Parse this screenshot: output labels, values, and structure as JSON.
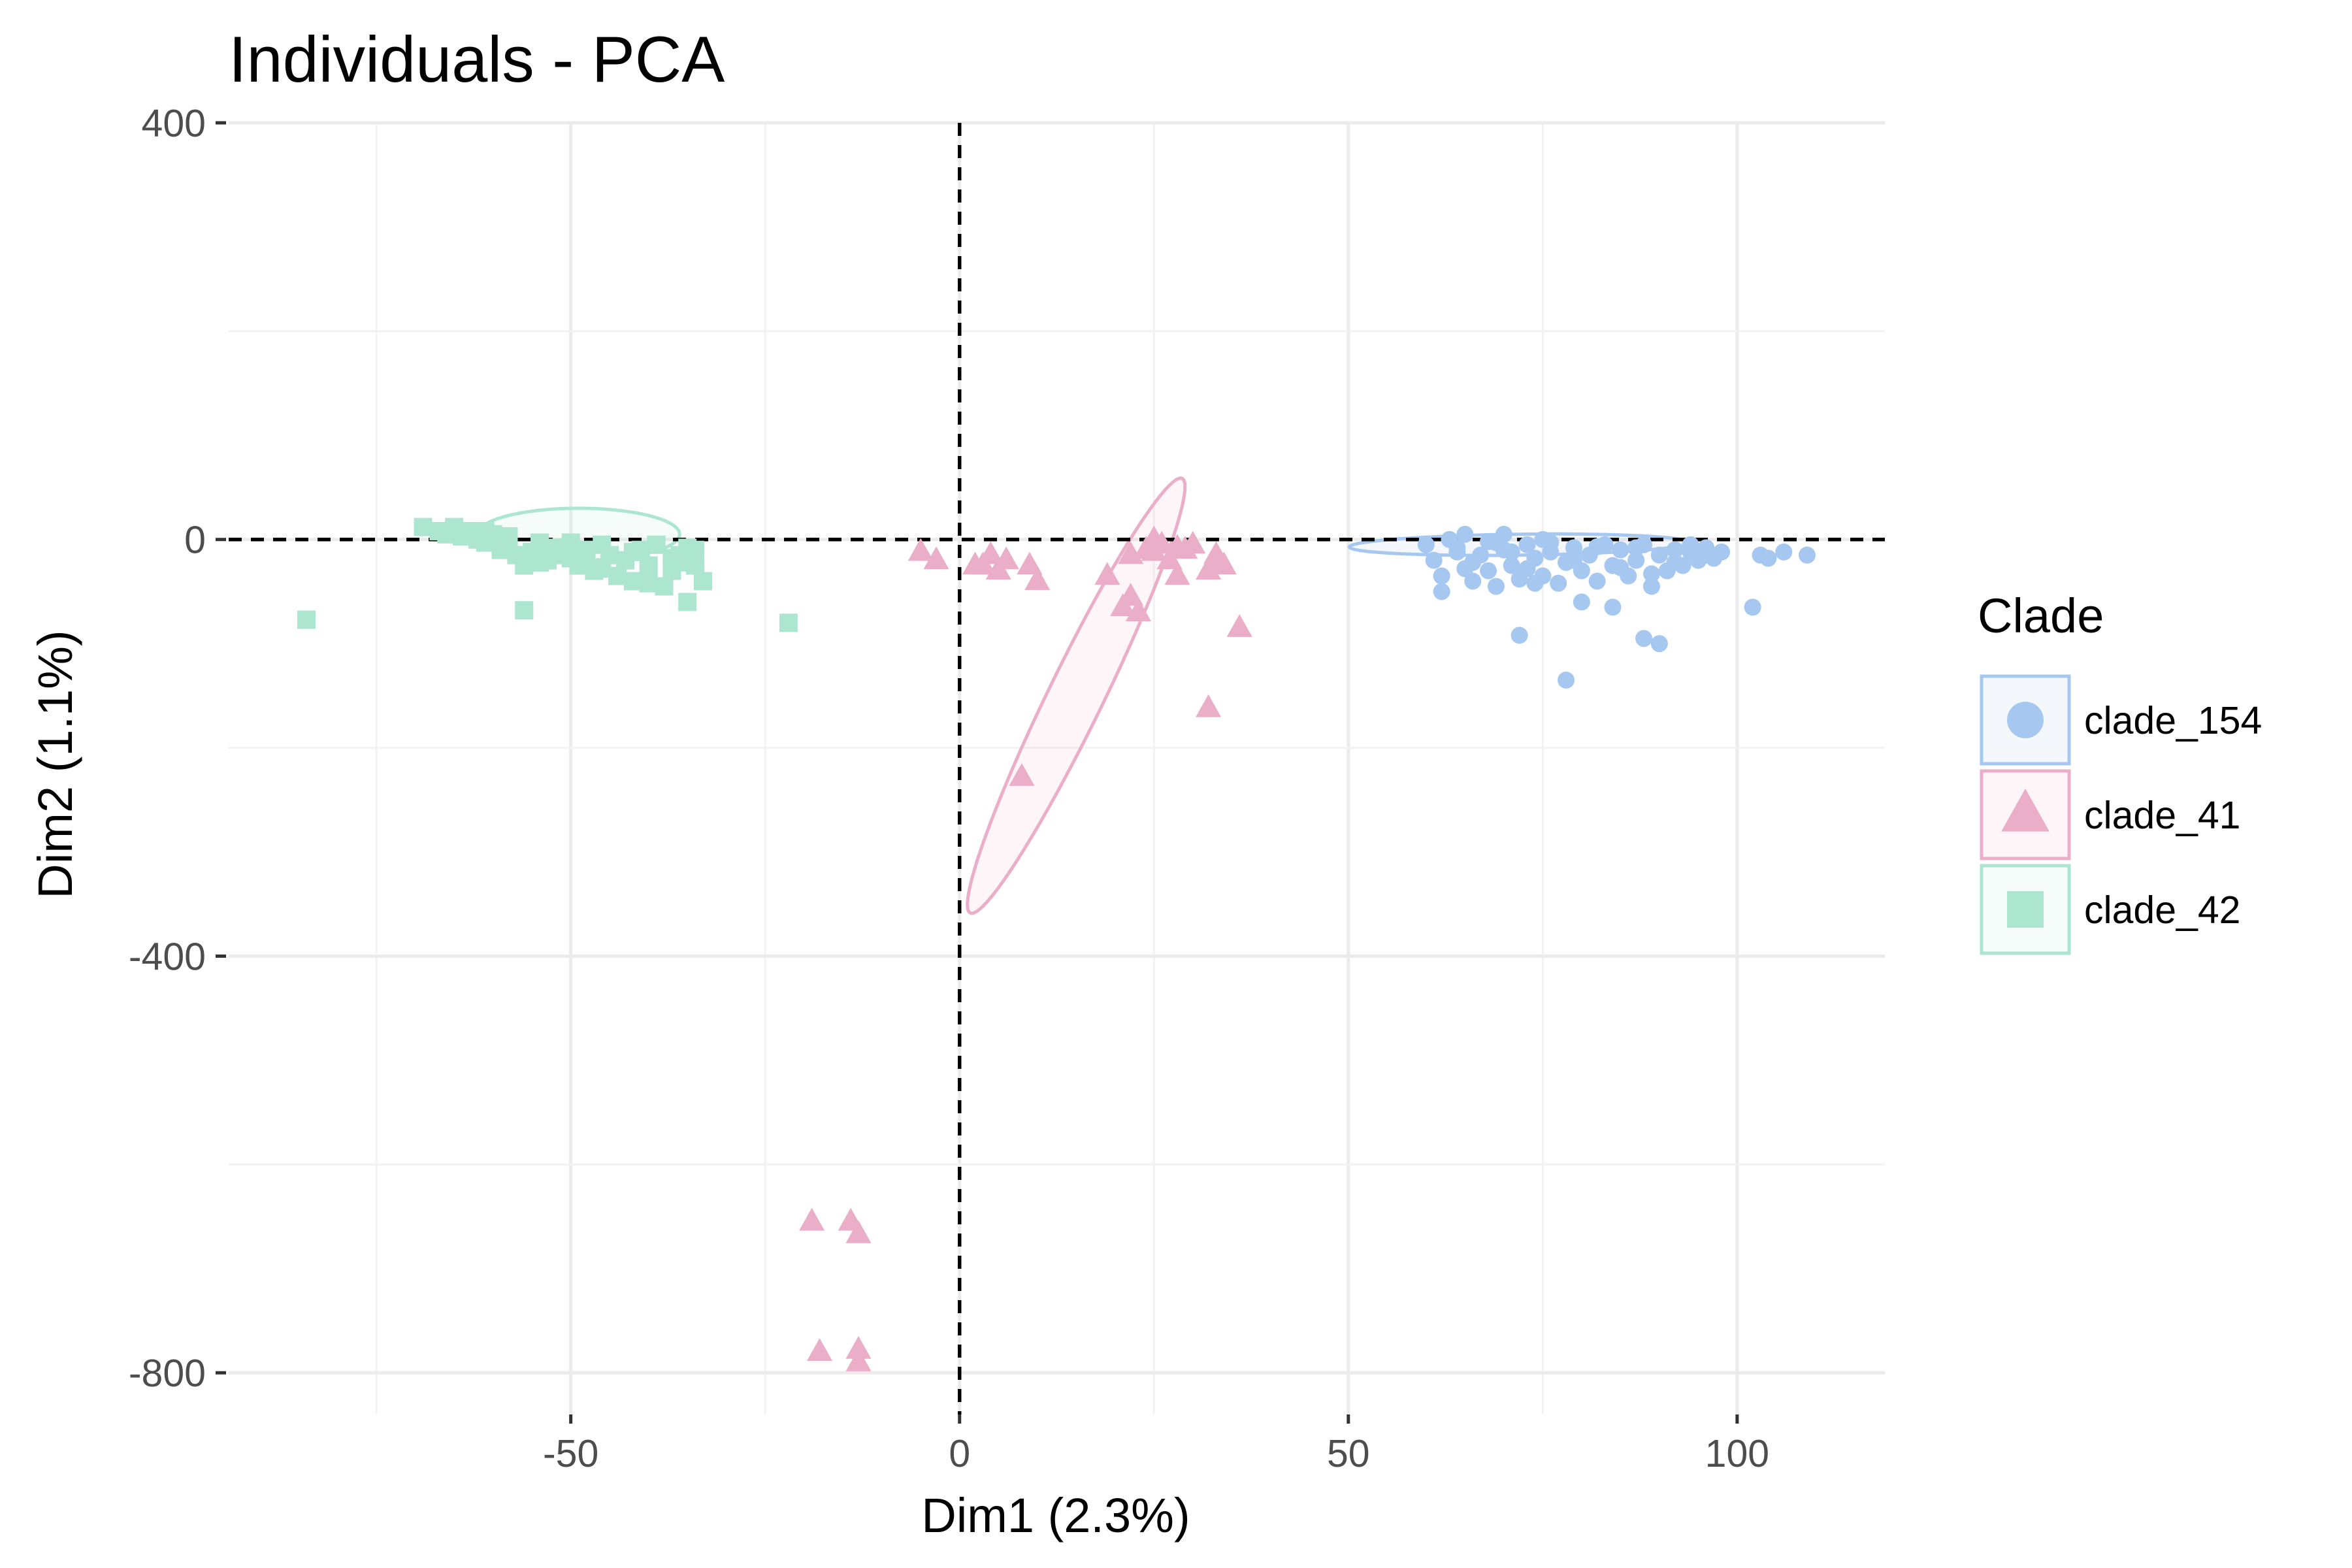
{
  "chart_data": {
    "type": "scatter",
    "title": "Individuals - PCA",
    "xlabel": "Dim1 (2.3%)",
    "ylabel": "Dim2 (1.1%)",
    "xlim": [
      -94,
      119
    ],
    "ylim": [
      -840,
      400
    ],
    "x_ticks": [
      -50,
      0,
      50,
      100
    ],
    "y_ticks": [
      400,
      0,
      -400,
      -800
    ],
    "x_tick_labels": [
      "-50",
      "0",
      "50",
      "100"
    ],
    "y_tick_labels": [
      "400",
      "0",
      "-400",
      "-800"
    ],
    "grid": true,
    "reference_lines": {
      "x": 0,
      "y": 0,
      "style": "dashed"
    },
    "legend": {
      "title": "Clade",
      "position": "right"
    },
    "series": [
      {
        "name": "clade_154",
        "marker": "circle",
        "color": "#A6C8F0",
        "ellipse": {
          "cx": 72,
          "cy": -5,
          "rx": 22,
          "ry": 10,
          "angle_deg": -7
        },
        "points": [
          [
            60,
            -5
          ],
          [
            61,
            -20
          ],
          [
            62,
            -35
          ],
          [
            62,
            -50
          ],
          [
            63,
            0
          ],
          [
            64,
            -12
          ],
          [
            65,
            -28
          ],
          [
            65,
            5
          ],
          [
            66,
            -40
          ],
          [
            67,
            -15
          ],
          [
            68,
            -2
          ],
          [
            68,
            -30
          ],
          [
            69,
            -45
          ],
          [
            70,
            -10
          ],
          [
            70,
            5
          ],
          [
            71,
            -25
          ],
          [
            72,
            -92
          ],
          [
            72,
            -38
          ],
          [
            73,
            -5
          ],
          [
            74,
            -18
          ],
          [
            75,
            0
          ],
          [
            75,
            -35
          ],
          [
            76,
            -12
          ],
          [
            77,
            -42
          ],
          [
            78,
            -135
          ],
          [
            78,
            -22
          ],
          [
            79,
            -8
          ],
          [
            80,
            -30
          ],
          [
            80,
            -60
          ],
          [
            81,
            -15
          ],
          [
            82,
            -40
          ],
          [
            83,
            -5
          ],
          [
            84,
            -65
          ],
          [
            84,
            -25
          ],
          [
            85,
            -10
          ],
          [
            86,
            -35
          ],
          [
            87,
            -20
          ],
          [
            88,
            -95
          ],
          [
            88,
            -5
          ],
          [
            89,
            -45
          ],
          [
            90,
            -15
          ],
          [
            90,
            -100
          ],
          [
            91,
            -30
          ],
          [
            92,
            -10
          ],
          [
            93,
            -25
          ],
          [
            94,
            -5
          ],
          [
            95,
            -20
          ],
          [
            96,
            -15
          ],
          [
            97,
            -18
          ],
          [
            98,
            -12
          ],
          [
            102,
            -65
          ],
          [
            103,
            -15
          ],
          [
            104,
            -18
          ],
          [
            106,
            -12
          ],
          [
            109,
            -15
          ],
          [
            64,
            -8
          ],
          [
            66,
            -22
          ],
          [
            69,
            -3
          ],
          [
            71,
            -12
          ],
          [
            73,
            -28
          ],
          [
            74,
            -42
          ],
          [
            76,
            -3
          ],
          [
            79,
            -20
          ],
          [
            82,
            -7
          ],
          [
            85,
            -27
          ],
          [
            87,
            -8
          ],
          [
            89,
            -33
          ],
          [
            92,
            -22
          ],
          [
            94,
            -12
          ],
          [
            96,
            -8
          ]
        ]
      },
      {
        "name": "clade_41",
        "marker": "triangle",
        "color": "#EBAEC8",
        "ellipse": {
          "cx": 15,
          "cy": -150,
          "rx": 370,
          "ry": 42,
          "angle_deg": -64
        },
        "points": [
          [
            -5,
            -12
          ],
          [
            -3,
            -20
          ],
          [
            3,
            -25
          ],
          [
            4,
            -15
          ],
          [
            5,
            -30
          ],
          [
            6,
            -20
          ],
          [
            9,
            -25
          ],
          [
            10,
            -40
          ],
          [
            19,
            -35
          ],
          [
            21,
            -65
          ],
          [
            22,
            -55
          ],
          [
            23,
            -70
          ],
          [
            22,
            -15
          ],
          [
            24,
            -10
          ],
          [
            25,
            0
          ],
          [
            26,
            -5
          ],
          [
            27,
            -20
          ],
          [
            28,
            -35
          ],
          [
            29,
            -10
          ],
          [
            30,
            -5
          ],
          [
            32,
            -30
          ],
          [
            33,
            -15
          ],
          [
            34,
            -25
          ],
          [
            36,
            -85
          ],
          [
            32,
            -162
          ],
          [
            8,
            -228
          ],
          [
            -19,
            -655
          ],
          [
            -14,
            -655
          ],
          [
            -13,
            -667
          ],
          [
            -18,
            -780
          ],
          [
            -13,
            -778
          ],
          [
            -13,
            -790
          ],
          [
            2,
            -25
          ],
          [
            25,
            -12
          ],
          [
            28,
            -8
          ],
          [
            33,
            -20
          ]
        ]
      },
      {
        "name": "clade_42",
        "marker": "square",
        "color": "#ACE5D0",
        "ellipse": {
          "cx": -49,
          "cy": 5,
          "rx": 13,
          "ry": 25,
          "angle_deg": 0
        },
        "points": [
          [
            -84,
            -77
          ],
          [
            -69,
            12
          ],
          [
            -67,
            8
          ],
          [
            -66,
            5
          ],
          [
            -65,
            12
          ],
          [
            -64,
            3
          ],
          [
            -63,
            8
          ],
          [
            -62,
            0
          ],
          [
            -61,
            -3
          ],
          [
            -60,
            5
          ],
          [
            -59,
            -10
          ],
          [
            -58,
            -5
          ],
          [
            -57,
            -15
          ],
          [
            -56,
            -68
          ],
          [
            -56,
            -25
          ],
          [
            -55,
            -12
          ],
          [
            -54,
            -3
          ],
          [
            -53,
            -20
          ],
          [
            -52,
            -8
          ],
          [
            -51,
            -15
          ],
          [
            -50,
            -3
          ],
          [
            -49,
            -25
          ],
          [
            -48,
            -10
          ],
          [
            -47,
            -30
          ],
          [
            -46,
            -5
          ],
          [
            -45,
            -15
          ],
          [
            -44,
            -35
          ],
          [
            -43,
            -20
          ],
          [
            -42,
            -40
          ],
          [
            -41,
            -10
          ],
          [
            -40,
            -25
          ],
          [
            -39,
            -5
          ],
          [
            -38,
            -45
          ],
          [
            -37,
            -30
          ],
          [
            -36,
            -15
          ],
          [
            -35,
            -60
          ],
          [
            -34,
            -25
          ],
          [
            -33,
            -40
          ],
          [
            -22,
            -80
          ],
          [
            -61,
            8
          ],
          [
            -58,
            3
          ],
          [
            -54,
            -22
          ],
          [
            -50,
            -18
          ],
          [
            -46,
            -28
          ],
          [
            -42,
            -12
          ],
          [
            -40,
            -42
          ],
          [
            -37,
            -18
          ],
          [
            -35,
            -8
          ],
          [
            -34,
            -10
          ],
          [
            -36,
            -22
          ]
        ]
      }
    ]
  }
}
